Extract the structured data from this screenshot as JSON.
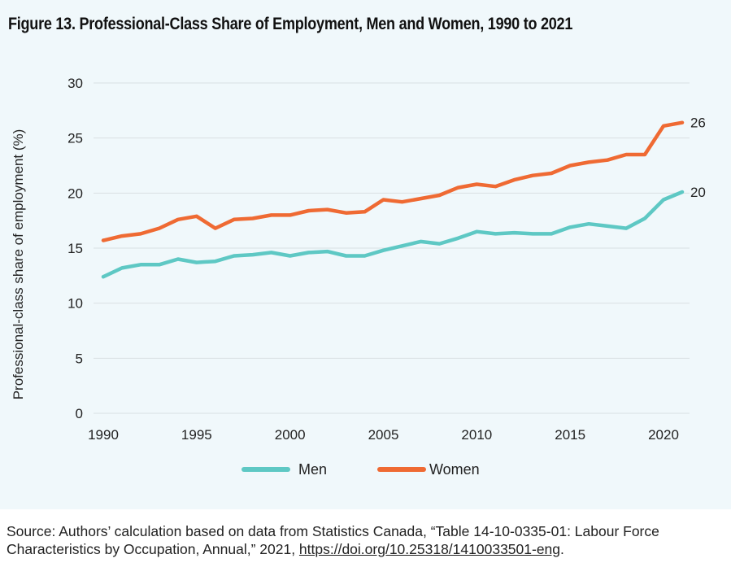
{
  "title": "Figure 13. Professional-Class Share of Employment, Men and Women, 1990 to 2021",
  "source": {
    "prefix": "Source: Authors’ calculation based on data from Statistics Canada, “Table 14-10-0335-01: Labour Force Characteristics by Occupation, Annual,” 2021, ",
    "link_text": "https://doi.org/10.25318/1410033501-eng",
    "suffix": "."
  },
  "colors": {
    "men": "#5ec8c4",
    "women": "#ef6a33",
    "background": "#f0f8fb",
    "grid": "#d9e0e3"
  },
  "chart_data": {
    "type": "line",
    "title": "Figure 13. Professional-Class Share of Employment, Men and Women, 1990 to 2021",
    "xlabel": "",
    "ylabel": "Professional-class share of employment (%)",
    "ylim": [
      0,
      30
    ],
    "xlim": [
      1990,
      2021
    ],
    "yticks": [
      0,
      5,
      10,
      15,
      20,
      25,
      30
    ],
    "xticks": [
      1990,
      1995,
      2000,
      2005,
      2010,
      2015,
      2020
    ],
    "grid": "horizontal",
    "legend_position": "bottom",
    "x": [
      1990,
      1991,
      1992,
      1993,
      1994,
      1995,
      1996,
      1997,
      1998,
      1999,
      2000,
      2001,
      2002,
      2003,
      2004,
      2005,
      2006,
      2007,
      2008,
      2009,
      2010,
      2011,
      2012,
      2013,
      2014,
      2015,
      2016,
      2017,
      2018,
      2019,
      2020,
      2021
    ],
    "series": [
      {
        "name": "Men",
        "color": "#5ec8c4",
        "end_label": "20",
        "values": [
          12.4,
          13.2,
          13.5,
          13.5,
          14.0,
          13.7,
          13.8,
          14.3,
          14.4,
          14.6,
          14.3,
          14.6,
          14.7,
          14.3,
          14.3,
          14.8,
          15.2,
          15.6,
          15.4,
          15.9,
          16.5,
          16.3,
          16.4,
          16.3,
          16.3,
          16.9,
          17.2,
          17.0,
          16.8,
          17.7,
          19.4,
          20.1
        ]
      },
      {
        "name": "Women",
        "color": "#ef6a33",
        "end_label": "26",
        "values": [
          15.7,
          16.1,
          16.3,
          16.8,
          17.6,
          17.9,
          16.8,
          17.6,
          17.7,
          18.0,
          18.0,
          18.4,
          18.5,
          18.2,
          18.3,
          19.4,
          19.2,
          19.5,
          19.8,
          20.5,
          20.8,
          20.6,
          21.2,
          21.6,
          21.8,
          22.5,
          22.8,
          23.0,
          23.5,
          23.5,
          26.1,
          26.4
        ]
      }
    ]
  }
}
